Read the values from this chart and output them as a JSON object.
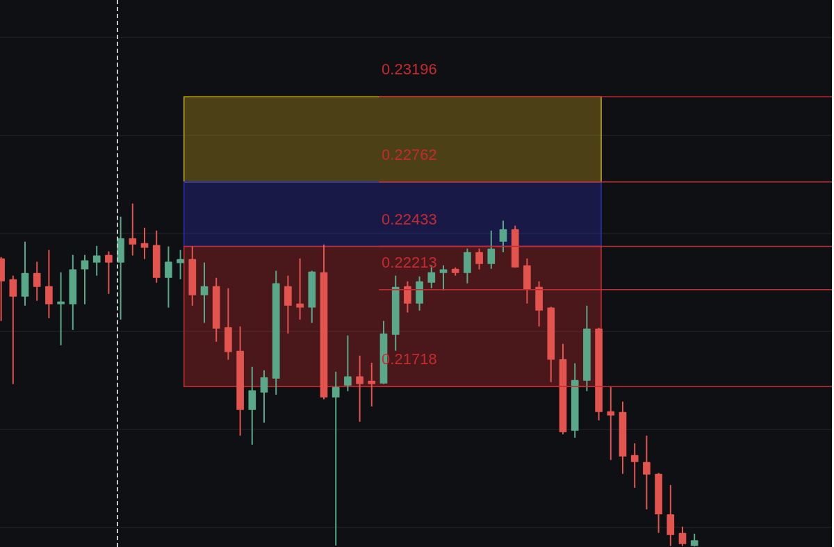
{
  "chart_data": {
    "type": "candlestick",
    "categories": [
      null,
      null,
      null,
      null,
      null,
      null,
      null,
      null,
      null,
      null,
      null,
      null,
      null,
      null,
      null,
      null,
      null,
      null,
      null,
      null,
      null,
      null,
      null,
      null,
      null,
      null,
      null,
      null,
      null,
      null,
      null,
      null,
      null,
      null,
      null,
      null,
      null,
      null,
      null,
      null,
      null,
      null,
      null,
      null,
      null,
      null,
      null,
      null,
      null,
      null,
      null,
      null,
      null,
      null,
      null,
      null,
      null,
      null,
      null,
      null,
      null,
      null,
      null,
      null,
      null,
      null,
      null,
      null,
      null,
      null
    ],
    "ohlc": [
      [
        0.22372,
        0.22379,
        0.22053,
        0.22255
      ],
      [
        0.22266,
        0.22284,
        0.21731,
        0.22177
      ],
      [
        0.22177,
        0.22457,
        0.22131,
        0.22298
      ],
      [
        0.22298,
        0.22355,
        0.22156,
        0.22227
      ],
      [
        0.2223,
        0.22415,
        0.22067,
        0.22138
      ],
      [
        0.22138,
        0.22301,
        0.21929,
        0.22152
      ],
      [
        0.22138,
        0.2239,
        0.22007,
        0.22316
      ],
      [
        0.22316,
        0.2239,
        0.22138,
        0.22362
      ],
      [
        0.22351,
        0.22436,
        0.22284,
        0.22387
      ],
      [
        0.2239,
        0.22408,
        0.22191,
        0.22351
      ],
      [
        0.22351,
        0.22585,
        0.2206,
        0.22475
      ],
      [
        0.22475,
        0.22652,
        0.22387,
        0.22443
      ],
      [
        0.2245,
        0.22528,
        0.22369,
        0.22426
      ],
      [
        0.2244,
        0.22514,
        0.22248,
        0.22273
      ],
      [
        0.22273,
        0.22433,
        0.22121,
        0.22355
      ],
      [
        0.22348,
        0.22415,
        0.22266,
        0.22369
      ],
      [
        0.22369,
        0.22433,
        0.22131,
        0.22184
      ],
      [
        0.22184,
        0.22351,
        0.22043,
        0.2223
      ],
      [
        0.2223,
        0.22273,
        0.21947,
        0.22014
      ],
      [
        0.22021,
        0.2222,
        0.21855,
        0.21894
      ],
      [
        0.21901,
        0.22025,
        0.21468,
        0.21599
      ],
      [
        0.21599,
        0.21819,
        0.21422,
        0.21699
      ],
      [
        0.21688,
        0.21801,
        0.21535,
        0.21766
      ],
      [
        0.21759,
        0.22309,
        0.21677,
        0.22245
      ],
      [
        0.2223,
        0.22284,
        0.21989,
        0.22131
      ],
      [
        0.22142,
        0.22372,
        0.2206,
        0.22121
      ],
      [
        0.22121,
        0.22309,
        0.22043,
        0.22305
      ],
      [
        0.22301,
        0.22443,
        0.21653,
        0.21663
      ],
      [
        0.21663,
        0.21794,
        0.20908,
        0.21716
      ],
      [
        0.21723,
        0.21979,
        0.21695,
        0.2177
      ],
      [
        0.2177,
        0.21876,
        0.21539,
        0.21731
      ],
      [
        0.21748,
        0.2184,
        0.21617,
        0.21731
      ],
      [
        0.21734,
        0.22053,
        0.21731,
        0.21989
      ],
      [
        0.21982,
        0.22284,
        0.21901,
        0.22227
      ],
      [
        0.2223,
        0.22255,
        0.22096,
        0.22142
      ],
      [
        0.22142,
        0.2228,
        0.22106,
        0.22255
      ],
      [
        0.22248,
        0.22337,
        0.2222,
        0.22301
      ],
      [
        0.22298,
        0.22337,
        0.22209,
        0.22316
      ],
      [
        0.22319,
        0.22326,
        0.22284,
        0.22298
      ],
      [
        0.22298,
        0.22422,
        0.22245,
        0.22404
      ],
      [
        0.22404,
        0.22422,
        0.22316,
        0.22344
      ],
      [
        0.22344,
        0.22514,
        0.22319,
        0.22422
      ],
      [
        0.22457,
        0.22564,
        0.22404,
        0.22521
      ],
      [
        0.22521,
        0.22539,
        0.22326,
        0.22326
      ],
      [
        0.22337,
        0.22372,
        0.22142,
        0.22213
      ],
      [
        0.22227,
        0.22255,
        0.22025,
        0.22106
      ],
      [
        0.22121,
        0.22125,
        0.21741,
        0.21855
      ],
      [
        0.21858,
        0.21936,
        0.21475,
        0.21486
      ],
      [
        0.21493,
        0.21837,
        0.21457,
        0.21752
      ],
      [
        0.21748,
        0.22131,
        0.21695,
        0.22014
      ],
      [
        0.22014,
        0.22018,
        0.21546,
        0.21589
      ],
      [
        0.21592,
        0.21716,
        0.21344,
        0.21571
      ],
      [
        0.21589,
        0.21642,
        0.21273,
        0.21362
      ],
      [
        0.21369,
        0.21429,
        0.21202,
        0.21333
      ],
      [
        0.21333,
        0.21468,
        0.21092,
        0.2127
      ],
      [
        0.21273,
        0.21278,
        0.20972,
        0.21067
      ],
      [
        0.21067,
        0.21216,
        0.20905,
        0.20961
      ],
      [
        0.20972,
        0.21004,
        0.20905,
        0.20915
      ],
      [
        0.20905,
        0.20968,
        0.20903,
        0.20935
      ],
      null,
      null,
      null,
      null,
      null,
      null,
      null,
      null,
      null,
      null,
      null
    ],
    "colors": [
      "#e4544f",
      "#e4544f",
      "#5aa88a",
      "#e4544f",
      "#e4544f",
      "#5aa88a",
      "#5aa88a",
      "#5aa88a",
      "#5aa88a",
      "#e4544f",
      "#5aa88a",
      "#e4544f",
      "#e4544f",
      "#e4544f",
      "#5aa88a",
      "#5aa88a",
      "#e4544f",
      "#5aa88a",
      "#e4544f",
      "#e4544f",
      "#e4544f",
      "#5aa88a",
      "#5aa88a",
      "#5aa88a",
      "#e4544f",
      "#e4544f",
      "#5aa88a",
      "#e4544f",
      "#5aa88a",
      "#5aa88a",
      "#e4544f",
      "#e4544f",
      "#5aa88a",
      "#5aa88a",
      "#e4544f",
      "#5aa88a",
      "#5aa88a",
      "#5aa88a",
      "#e4544f",
      "#5aa88a",
      "#e4544f",
      "#5aa88a",
      "#5aa88a",
      "#e4544f",
      "#e4544f",
      "#e4544f",
      "#e4544f",
      "#e4544f",
      "#5aa88a",
      "#5aa88a",
      "#e4544f",
      "#e4544f",
      "#e4544f",
      "#e4544f",
      "#e4544f",
      "#e4544f",
      "#e4544f",
      "#e4544f",
      "#5aa88a",
      null,
      null,
      null,
      null,
      null,
      null,
      null,
      null,
      null,
      null,
      null
    ],
    "ylim": [
      0.209,
      0.2369
    ],
    "yticks": [
      {
        "value": 0.21,
        "label": null
      },
      {
        "value": 0.215,
        "label": null
      },
      {
        "value": 0.22,
        "label": null
      },
      {
        "value": 0.225,
        "label": null
      },
      {
        "value": 0.23,
        "label": null
      },
      {
        "value": 0.235,
        "label": null
      }
    ],
    "grid": "y",
    "tick_labels": false,
    "bands": [
      {
        "axis": "y",
        "from": 0.22762,
        "to": 0.23196,
        "color": "#c9a820"
      },
      {
        "axis": "y",
        "from": 0.22433,
        "to": 0.22762,
        "color": "#2a30b8"
      },
      {
        "axis": "y",
        "from": 0.21718,
        "to": 0.22433,
        "color": "#c62b30"
      }
    ],
    "ref_lines": [
      {
        "axis": "y",
        "value": 0.23196,
        "label": "0.23196",
        "color": "#c62b30"
      },
      {
        "axis": "y",
        "value": 0.22762,
        "label": "0.22762",
        "color": "#c62b30"
      },
      {
        "axis": "y",
        "value": 0.22433,
        "label": "0.22433",
        "color": "#c62b30"
      },
      {
        "axis": "y",
        "value": 0.22213,
        "label": "0.22213",
        "color": "#c62b30"
      },
      {
        "axis": "y",
        "value": 0.21718,
        "label": "0.21718",
        "color": "#c62b30"
      }
    ]
  }
}
